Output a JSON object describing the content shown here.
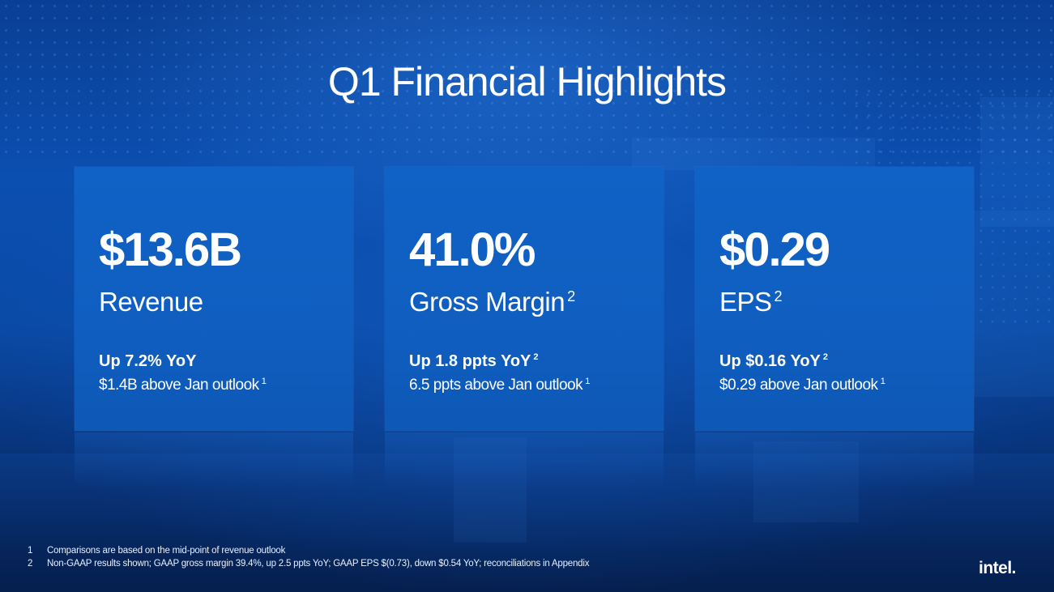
{
  "slide": {
    "title": "Q1 Financial Highlights",
    "brand_logo": "intel."
  },
  "cards": [
    {
      "value": "$13.6B",
      "label": "Revenue",
      "label_note": "",
      "change": "Up 7.2% YoY",
      "change_note": "",
      "outlook": "$1.4B above Jan outlook",
      "outlook_note": "1"
    },
    {
      "value": "41.0%",
      "label": "Gross Margin",
      "label_note": "2",
      "change": "Up 1.8 ppts YoY",
      "change_note": "2",
      "outlook": "6.5 ppts above Jan outlook",
      "outlook_note": "1"
    },
    {
      "value": "$0.29",
      "label": "EPS",
      "label_note": "2",
      "change": "Up $0.16 YoY",
      "change_note": "2",
      "outlook": "$0.29 above Jan outlook",
      "outlook_note": "1"
    }
  ],
  "footnotes": [
    {
      "num": "1",
      "text": "Comparisons are based on the mid-point of revenue outlook"
    },
    {
      "num": "2",
      "text": "Non-GAAP results shown; GAAP gross margin 39.4%, up 2.5 ppts YoY; GAAP EPS $(0.73), down $0.54 YoY; reconciliations in Appendix"
    }
  ],
  "colors": {
    "background_primary": "#0b4fb0",
    "card_fill": "#1162c6",
    "text": "#ffffff"
  }
}
